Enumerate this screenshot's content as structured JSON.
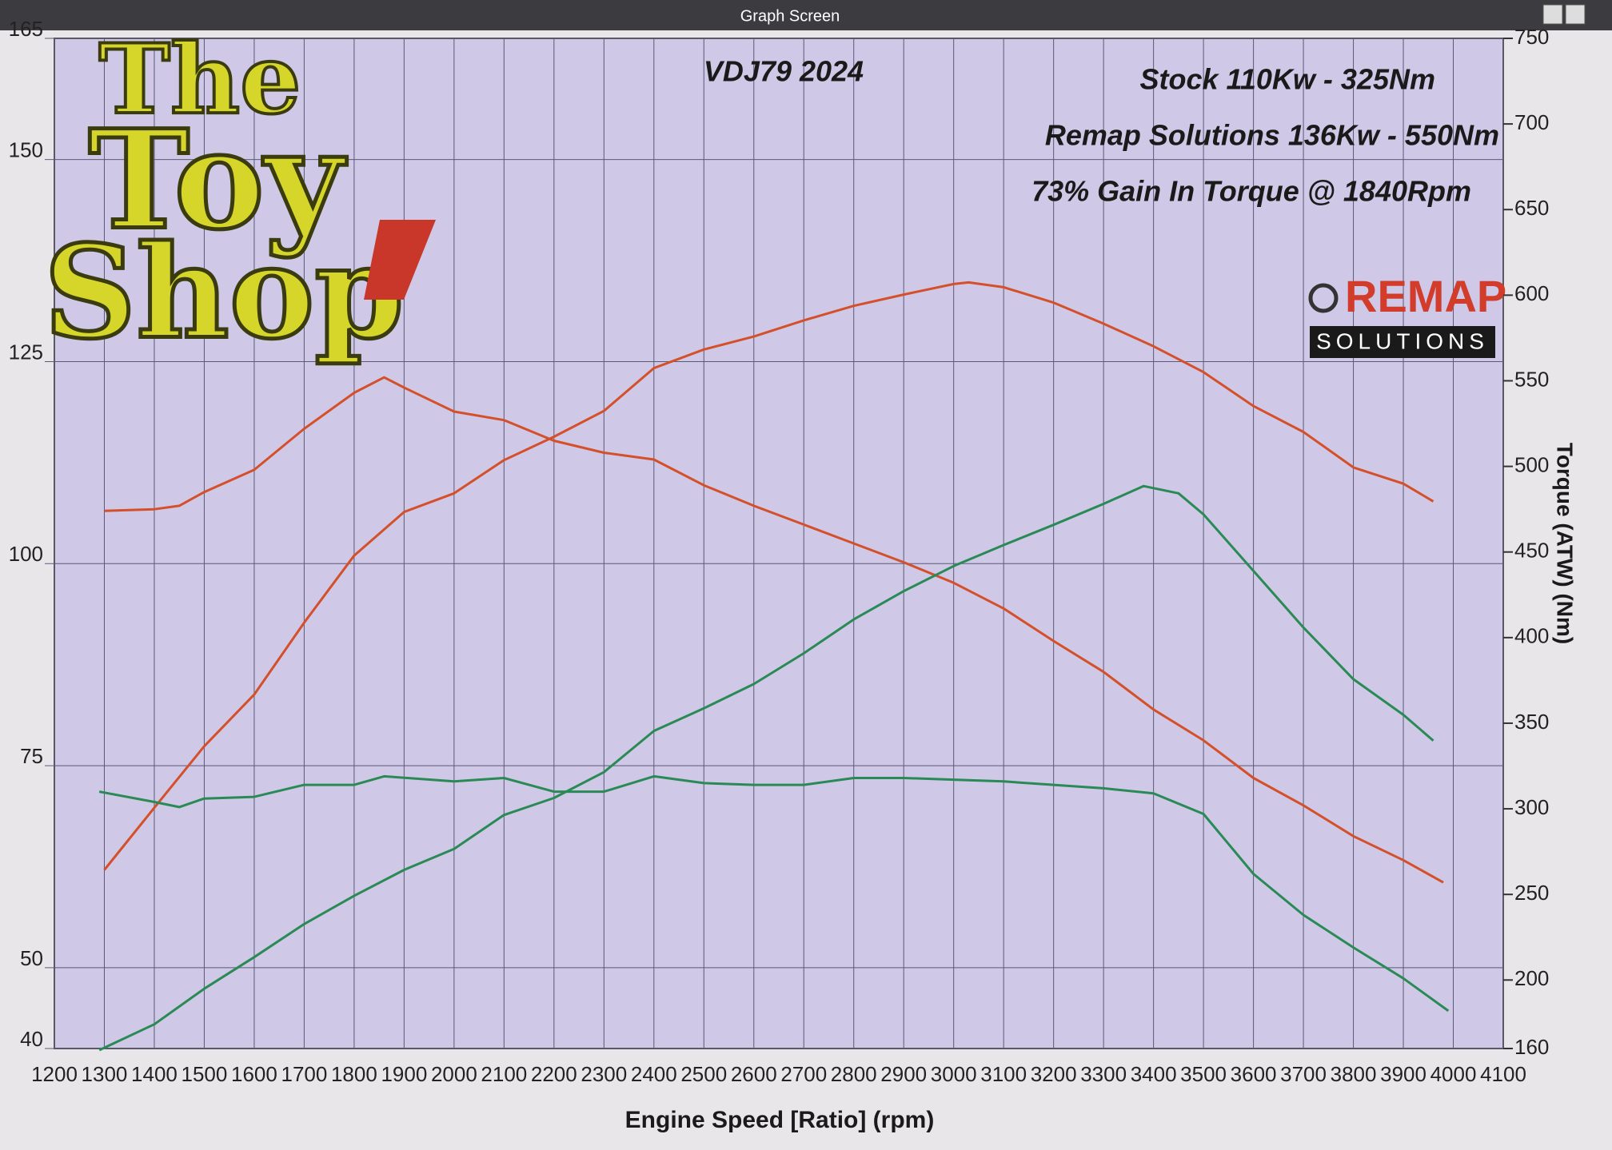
{
  "window": {
    "title": "Graph Screen"
  },
  "logo": {
    "lines": [
      "The",
      "Toy",
      "Shop"
    ]
  },
  "brand": {
    "name": "REMAP",
    "tagline": "SOLUTIONS"
  },
  "chart_data": {
    "type": "line",
    "title": "VDJ79 2024",
    "annotations": [
      "Stock 110Kw - 325Nm",
      "Remap Solutions 136Kw - 550Nm",
      "73% Gain In Torque @ 1840Rpm"
    ],
    "x_label": "Engine Speed [Ratio] (rpm)",
    "y2_label": "Torque (ATW) (Nm)",
    "xlim": [
      1200,
      4100
    ],
    "xticks": [
      1200,
      1300,
      1400,
      1500,
      1600,
      1700,
      1800,
      1900,
      2000,
      2100,
      2200,
      2300,
      2400,
      2500,
      2600,
      2700,
      2800,
      2900,
      3000,
      3100,
      3200,
      3300,
      3400,
      3500,
      3600,
      3700,
      3800,
      3900,
      4000,
      4100
    ],
    "ylim": [
      40,
      165
    ],
    "yticks": [
      40,
      50,
      75,
      100,
      125,
      150,
      165
    ],
    "y2lim": [
      160,
      750
    ],
    "y2ticks": [
      160,
      200,
      250,
      300,
      350,
      400,
      450,
      500,
      550,
      600,
      650,
      700,
      750
    ],
    "grid": true,
    "series": [
      {
        "color": "#d4502a",
        "axis": "y",
        "x": [
          1300,
          1400,
          1500,
          1600,
          1700,
          1800,
          1900,
          2000,
          2100,
          2200,
          2300,
          2400,
          2500,
          2600,
          2700,
          2800,
          2900,
          3000,
          3030,
          3100,
          3200,
          3300,
          3400,
          3500,
          3600,
          3700,
          3800,
          3900,
          3960
        ],
        "values": [
          62.1,
          69.8,
          77.4,
          83.8,
          92.7,
          101,
          106.4,
          108.7,
          112.8,
          115.7,
          118.9,
          124.2,
          126.5,
          128.1,
          130.1,
          131.9,
          133.3,
          134.6,
          134.8,
          134.2,
          132.3,
          129.7,
          126.9,
          123.7,
          119.5,
          116.3,
          111.9,
          109.9,
          107.7
        ]
      },
      {
        "color": "#d4502a",
        "axis": "y2",
        "x": [
          1300,
          1400,
          1450,
          1500,
          1600,
          1700,
          1800,
          1860,
          1900,
          2000,
          2100,
          2200,
          2300,
          2400,
          2500,
          2600,
          2700,
          2800,
          2900,
          3000,
          3100,
          3200,
          3300,
          3400,
          3500,
          3600,
          3700,
          3800,
          3900,
          3980
        ],
        "values": [
          474,
          475,
          477,
          485,
          498,
          522,
          543,
          552,
          546,
          532,
          527,
          515,
          508,
          504,
          489,
          477,
          466,
          455,
          444,
          432,
          417,
          398,
          380,
          358,
          340,
          318,
          302,
          284,
          270,
          257
        ]
      },
      {
        "color": "#2a8a55",
        "axis": "y2",
        "x": [
          1290,
          1400,
          1450,
          1500,
          1600,
          1700,
          1800,
          1860,
          2000,
          2100,
          2200,
          2300,
          2400,
          2500,
          2600,
          2700,
          2800,
          2900,
          3000,
          3100,
          3200,
          3300,
          3400,
          3500,
          3600,
          3700,
          3800,
          3900,
          3990
        ],
        "values": [
          310,
          304,
          301,
          306,
          307,
          314,
          314,
          319,
          316,
          318,
          310,
          310,
          319,
          315,
          314,
          314,
          318,
          318,
          317,
          316,
          314,
          312,
          309,
          297,
          262,
          238,
          219,
          201,
          182
        ]
      },
      {
        "color": "#2a8a55",
        "axis": "y",
        "x": [
          1290,
          1400,
          1500,
          1600,
          1700,
          1800,
          1900,
          2000,
          2100,
          2200,
          2300,
          2400,
          2500,
          2600,
          2700,
          2800,
          2900,
          3000,
          3100,
          3200,
          3300,
          3380,
          3450,
          3500,
          3600,
          3700,
          3800,
          3900,
          3960
        ],
        "values": [
          39.8,
          43,
          47.4,
          51.3,
          55.4,
          58.9,
          62.1,
          64.7,
          68.9,
          71,
          74.2,
          79.3,
          82.1,
          85.1,
          88.9,
          93.1,
          96.6,
          99.7,
          102.3,
          104.8,
          107.4,
          109.6,
          108.7,
          106.1,
          99.1,
          92.1,
          85.7,
          81.3,
          78.1
        ]
      }
    ]
  }
}
